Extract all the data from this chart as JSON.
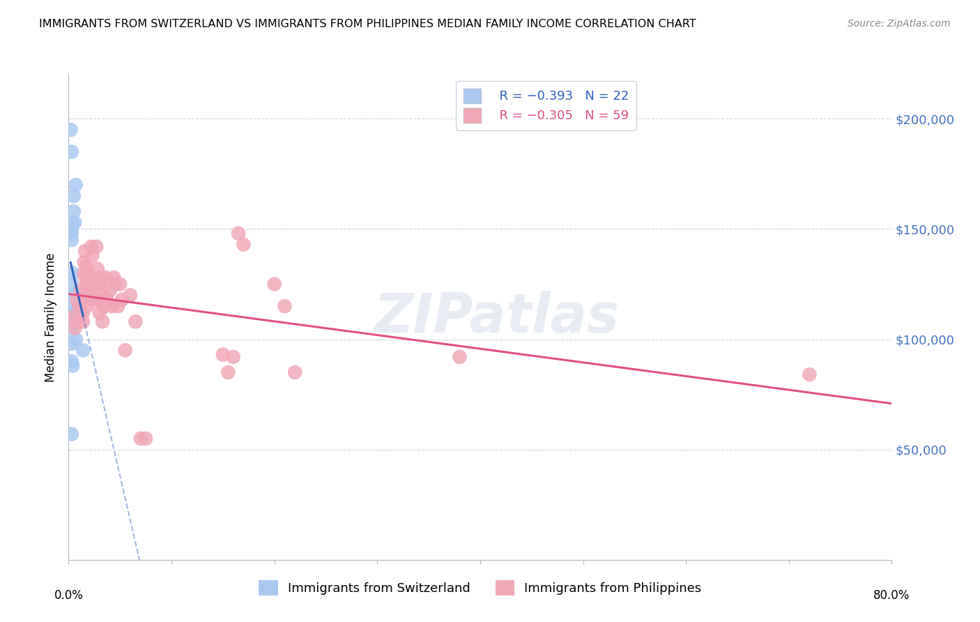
{
  "title": "IMMIGRANTS FROM SWITZERLAND VS IMMIGRANTS FROM PHILIPPINES MEDIAN FAMILY INCOME CORRELATION CHART",
  "source": "Source: ZipAtlas.com",
  "ylabel": "Median Family Income",
  "ytick_labels": [
    "",
    "$50,000",
    "$100,000",
    "$150,000",
    "$200,000"
  ],
  "ytick_values": [
    0,
    50000,
    100000,
    150000,
    200000
  ],
  "ylim": [
    0,
    220000
  ],
  "xlim": [
    0.0,
    0.8
  ],
  "legend_r1": "R = −0.393",
  "legend_n1": "N = 22",
  "legend_r2": "R = −0.305",
  "legend_n2": "N = 59",
  "color_swiss": "#a8c8f0",
  "color_phil": "#f0a8b8",
  "color_swiss_line": "#3060c0",
  "color_phil_line": "#e05080",
  "watermark": "ZIPatlas",
  "swiss_x": [
    0.002,
    0.003,
    0.007,
    0.005,
    0.005,
    0.006,
    0.004,
    0.003,
    0.003,
    0.003,
    0.004,
    0.003,
    0.006,
    0.003,
    0.004,
    0.003,
    0.007,
    0.003,
    0.014,
    0.003,
    0.004,
    0.003
  ],
  "swiss_y": [
    195000,
    185000,
    170000,
    165000,
    158000,
    153000,
    152000,
    150000,
    148000,
    145000,
    130000,
    125000,
    120000,
    115000,
    112000,
    105000,
    100000,
    98000,
    95000,
    90000,
    88000,
    57000
  ],
  "phil_x": [
    0.004,
    0.006,
    0.008,
    0.01,
    0.01,
    0.012,
    0.013,
    0.014,
    0.014,
    0.015,
    0.015,
    0.016,
    0.016,
    0.017,
    0.017,
    0.018,
    0.018,
    0.019,
    0.02,
    0.021,
    0.022,
    0.022,
    0.023,
    0.025,
    0.026,
    0.027,
    0.028,
    0.029,
    0.03,
    0.03,
    0.031,
    0.032,
    0.033,
    0.034,
    0.035,
    0.036,
    0.037,
    0.04,
    0.042,
    0.044,
    0.046,
    0.048,
    0.05,
    0.052,
    0.055,
    0.06,
    0.065,
    0.07,
    0.075,
    0.15,
    0.155,
    0.16,
    0.165,
    0.17,
    0.2,
    0.21,
    0.22,
    0.38,
    0.72
  ],
  "phil_y": [
    110000,
    105000,
    118000,
    115000,
    108000,
    122000,
    118000,
    112000,
    108000,
    135000,
    130000,
    140000,
    128000,
    133000,
    125000,
    120000,
    115000,
    130000,
    125000,
    120000,
    118000,
    142000,
    138000,
    125000,
    118000,
    142000,
    132000,
    125000,
    118000,
    112000,
    128000,
    122000,
    108000,
    118000,
    115000,
    128000,
    118000,
    122000,
    115000,
    128000,
    125000,
    115000,
    125000,
    118000,
    95000,
    120000,
    108000,
    55000,
    55000,
    93000,
    85000,
    92000,
    148000,
    143000,
    125000,
    115000,
    85000,
    92000,
    84000
  ]
}
